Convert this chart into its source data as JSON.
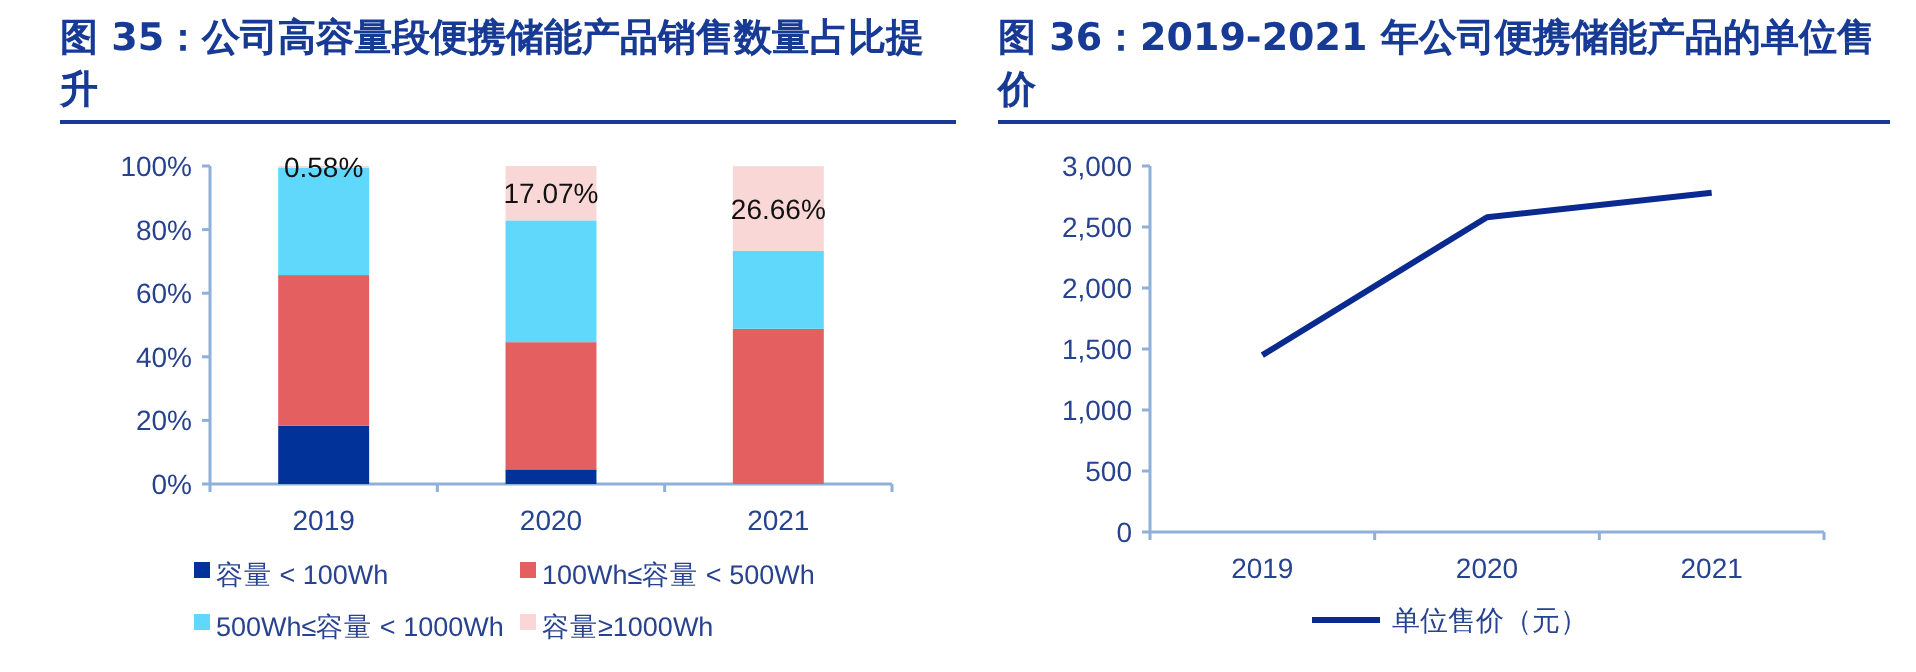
{
  "chart_data": [
    {
      "type": "bar",
      "title": "图 35：公司高容量段便携储能产品销售数量占比提升",
      "stacked": true,
      "categories": [
        "2019",
        "2020",
        "2021"
      ],
      "ylim": [
        0,
        100
      ],
      "yticks": [
        {
          "value": 0,
          "label": "0%"
        },
        {
          "value": 20,
          "label": "20%"
        },
        {
          "value": 40,
          "label": "40%"
        },
        {
          "value": 60,
          "label": "60%"
        },
        {
          "value": 80,
          "label": "80%"
        },
        {
          "value": 100,
          "label": "100%"
        }
      ],
      "grid": false,
      "legend": "bottom",
      "series": [
        {
          "name": "容量 < 100Wh",
          "color": "#00329a",
          "values": [
            18.3,
            4.6,
            0
          ]
        },
        {
          "name": "100Wh≤容量 < 500Wh",
          "color": "#e45f5f",
          "values": [
            47.4,
            40.0,
            48.8
          ]
        },
        {
          "name": "500Wh≤容量 < 1000Wh",
          "color": "#5fd8fb",
          "values": [
            33.7,
            38.3,
            24.5
          ]
        },
        {
          "name": "容量≥1000Wh",
          "color": "#f9d7d6",
          "values": [
            0.58,
            17.07,
            26.66
          ],
          "value_labels": [
            "0.58%",
            "17.07%",
            "26.66%"
          ]
        }
      ]
    },
    {
      "type": "line",
      "title": "图 36：2019-2021 年公司便携储能产品的单位售价",
      "categories": [
        "2019",
        "2020",
        "2021"
      ],
      "ylim": [
        0,
        3000
      ],
      "yticks": [
        {
          "value": 0,
          "label": "0"
        },
        {
          "value": 500,
          "label": "500"
        },
        {
          "value": 1000,
          "label": "1,000"
        },
        {
          "value": 1500,
          "label": "1,500"
        },
        {
          "value": 2000,
          "label": "2,000"
        },
        {
          "value": 2500,
          "label": "2,500"
        },
        {
          "value": 3000,
          "label": "3,000"
        }
      ],
      "grid": false,
      "legend": "bottom",
      "marker": "none",
      "line_style": "solid",
      "series": [
        {
          "name": "单位售价（元）",
          "color": "#0a2a8f",
          "values": [
            1450,
            2580,
            2780
          ]
        }
      ]
    }
  ]
}
